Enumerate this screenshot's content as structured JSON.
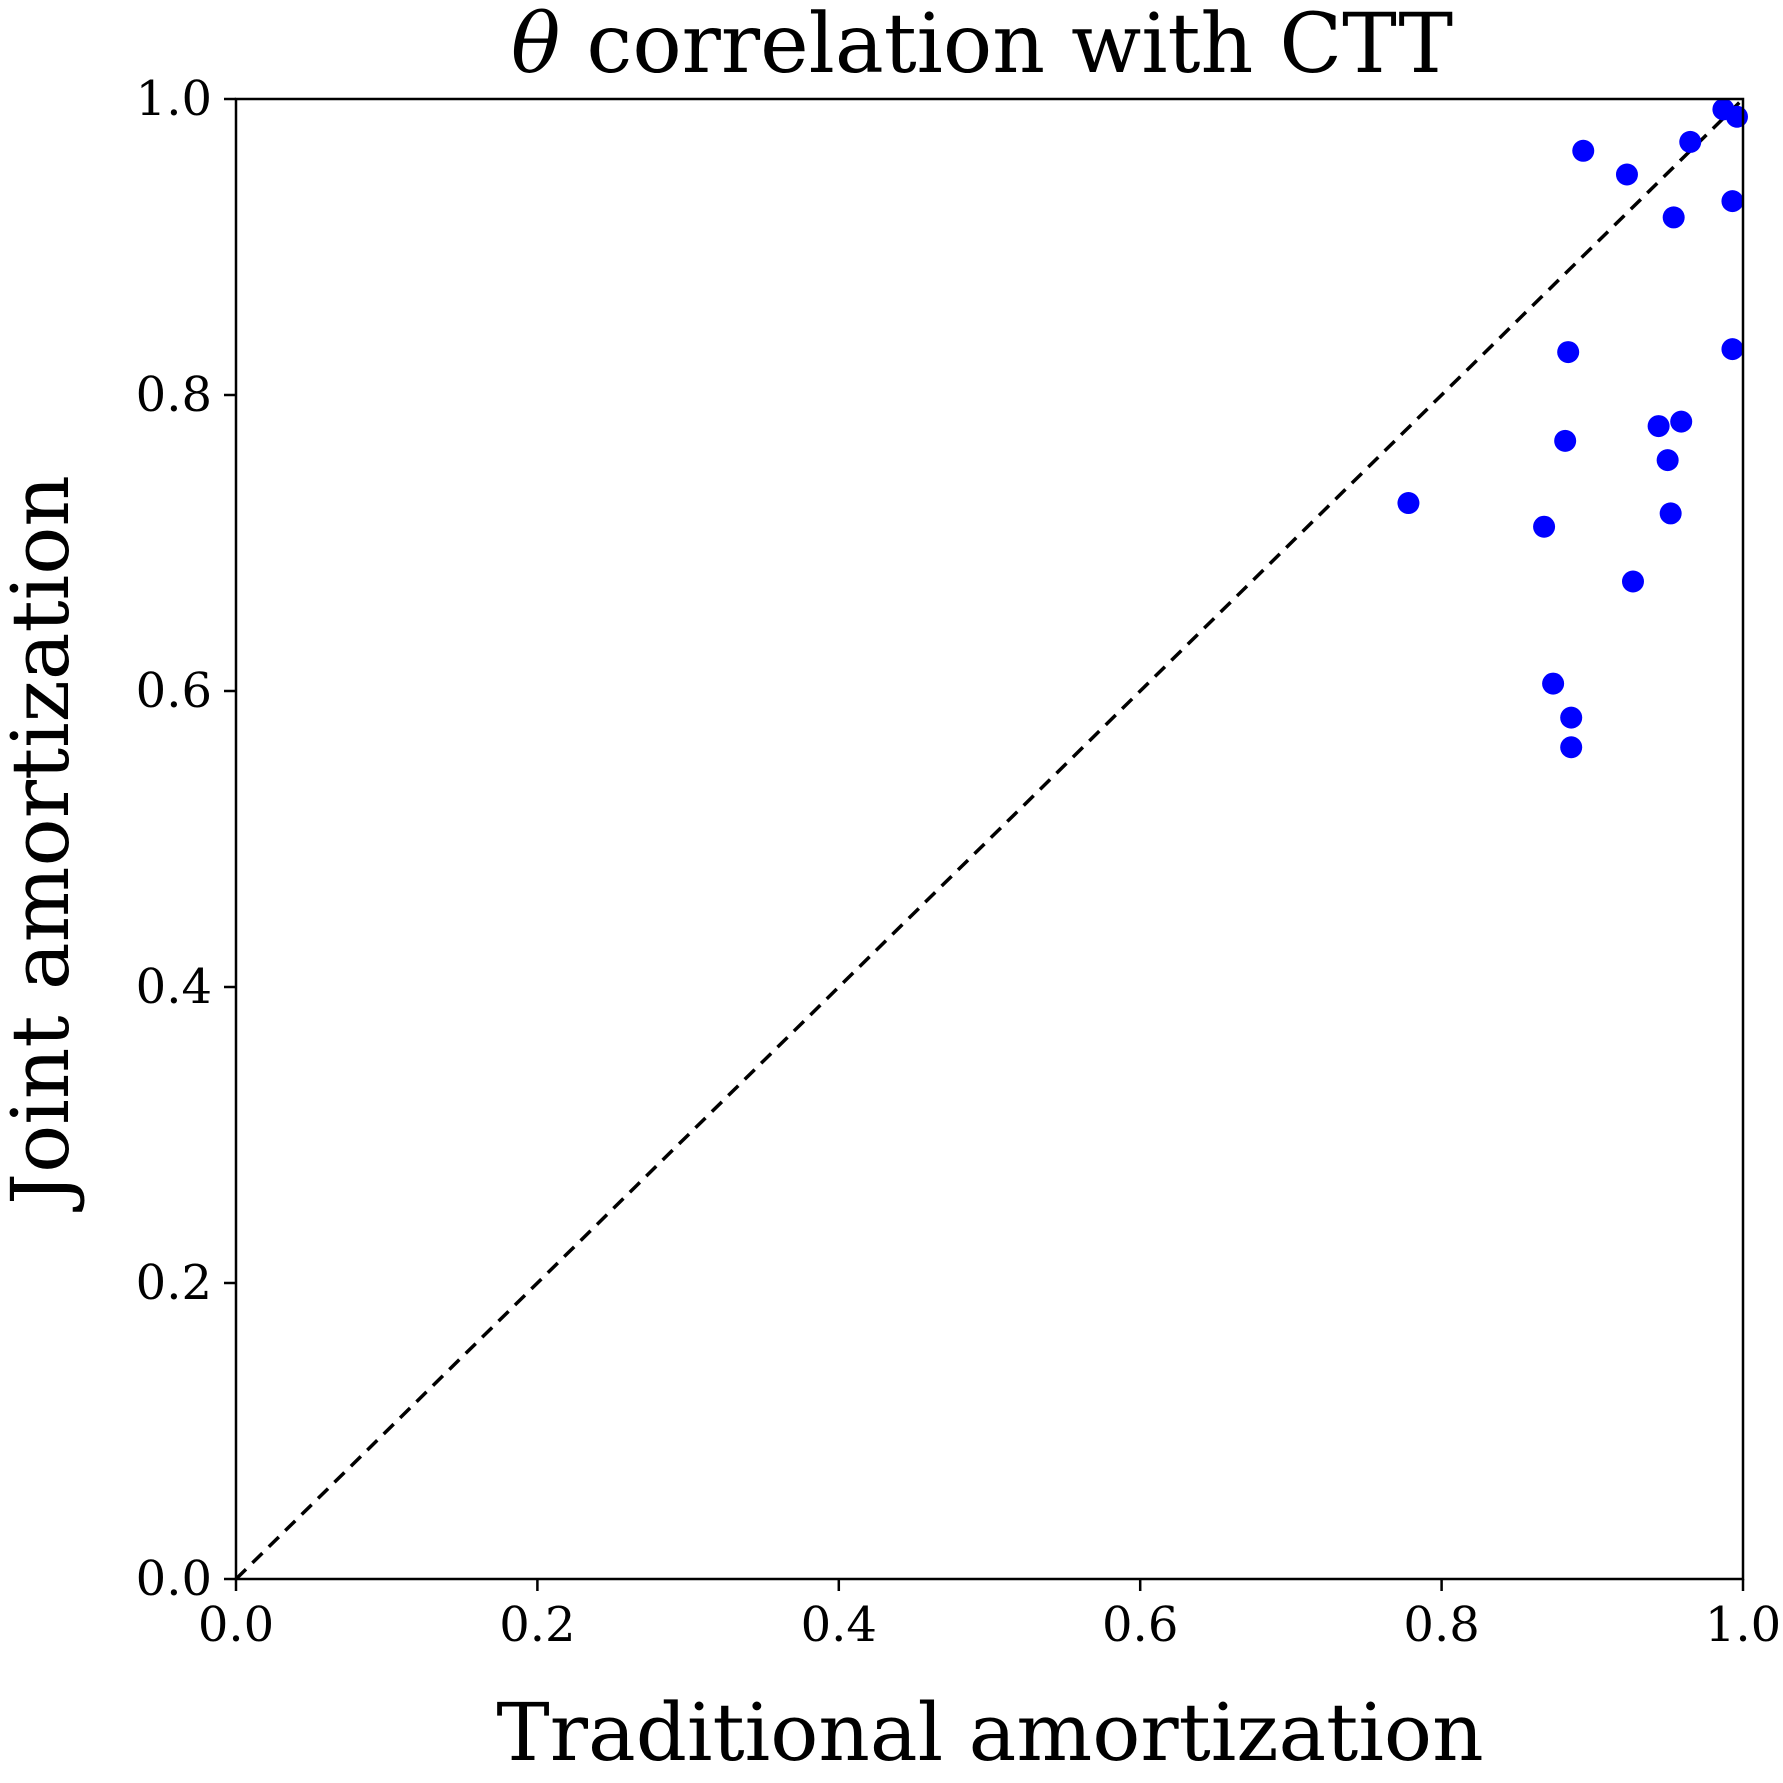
{
  "chart_data": {
    "type": "scatter",
    "title_symbol": "θ",
    "title_text": " correlation with CTT",
    "xlabel": "Traditional amortization",
    "ylabel": "Joint amortization",
    "xlim": [
      0.0,
      1.0
    ],
    "ylim": [
      0.0,
      1.0
    ],
    "xticks": [
      "0.0",
      "0.2",
      "0.4",
      "0.6",
      "0.8",
      "1.0"
    ],
    "yticks": [
      "0.0",
      "0.2",
      "0.4",
      "0.6",
      "0.8",
      "1.0"
    ],
    "grid": false,
    "reference_line": {
      "style": "dashed",
      "color": "#000000",
      "from": [
        0.0,
        0.0
      ],
      "to": [
        1.0,
        1.0
      ]
    },
    "point_color": "#0000ff",
    "points": [
      {
        "x": 0.778,
        "y": 0.727
      },
      {
        "x": 0.868,
        "y": 0.711
      },
      {
        "x": 0.874,
        "y": 0.605
      },
      {
        "x": 0.882,
        "y": 0.769
      },
      {
        "x": 0.884,
        "y": 0.829
      },
      {
        "x": 0.886,
        "y": 0.582
      },
      {
        "x": 0.886,
        "y": 0.562
      },
      {
        "x": 0.894,
        "y": 0.965
      },
      {
        "x": 0.923,
        "y": 0.949
      },
      {
        "x": 0.927,
        "y": 0.674
      },
      {
        "x": 0.944,
        "y": 0.779
      },
      {
        "x": 0.95,
        "y": 0.756
      },
      {
        "x": 0.952,
        "y": 0.72
      },
      {
        "x": 0.954,
        "y": 0.92
      },
      {
        "x": 0.959,
        "y": 0.782
      },
      {
        "x": 0.965,
        "y": 0.971
      },
      {
        "x": 0.987,
        "y": 0.993
      },
      {
        "x": 0.993,
        "y": 0.931
      },
      {
        "x": 0.993,
        "y": 0.831
      },
      {
        "x": 0.996,
        "y": 0.988
      }
    ]
  }
}
